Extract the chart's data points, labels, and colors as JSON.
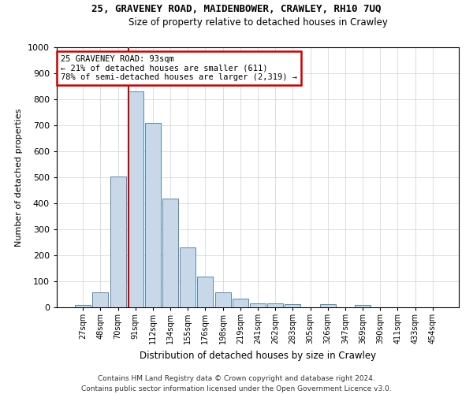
{
  "title": "25, GRAVENEY ROAD, MAIDENBOWER, CRAWLEY, RH10 7UQ",
  "subtitle": "Size of property relative to detached houses in Crawley",
  "xlabel": "Distribution of detached houses by size in Crawley",
  "ylabel": "Number of detached properties",
  "bar_color": "#c8d8e8",
  "bar_edge_color": "#5588aa",
  "categories": [
    "27sqm",
    "48sqm",
    "70sqm",
    "91sqm",
    "112sqm",
    "134sqm",
    "155sqm",
    "176sqm",
    "198sqm",
    "219sqm",
    "241sqm",
    "262sqm",
    "283sqm",
    "305sqm",
    "326sqm",
    "347sqm",
    "369sqm",
    "390sqm",
    "411sqm",
    "433sqm",
    "454sqm"
  ],
  "values": [
    8,
    57,
    503,
    830,
    710,
    418,
    230,
    117,
    57,
    33,
    15,
    15,
    13,
    0,
    13,
    0,
    8,
    0,
    0,
    0,
    0
  ],
  "ylim": [
    0,
    1000
  ],
  "yticks": [
    0,
    100,
    200,
    300,
    400,
    500,
    600,
    700,
    800,
    900,
    1000
  ],
  "annotation_line1": "25 GRAVENEY ROAD: 93sqm",
  "annotation_line2": "← 21% of detached houses are smaller (611)",
  "annotation_line3": "78% of semi-detached houses are larger (2,319) →",
  "annotation_box_color": "#ffffff",
  "annotation_box_edge": "#cc0000",
  "vline_color": "#cc0000",
  "vline_x_index": 3,
  "footer1": "Contains HM Land Registry data © Crown copyright and database right 2024.",
  "footer2": "Contains public sector information licensed under the Open Government Licence v3.0."
}
